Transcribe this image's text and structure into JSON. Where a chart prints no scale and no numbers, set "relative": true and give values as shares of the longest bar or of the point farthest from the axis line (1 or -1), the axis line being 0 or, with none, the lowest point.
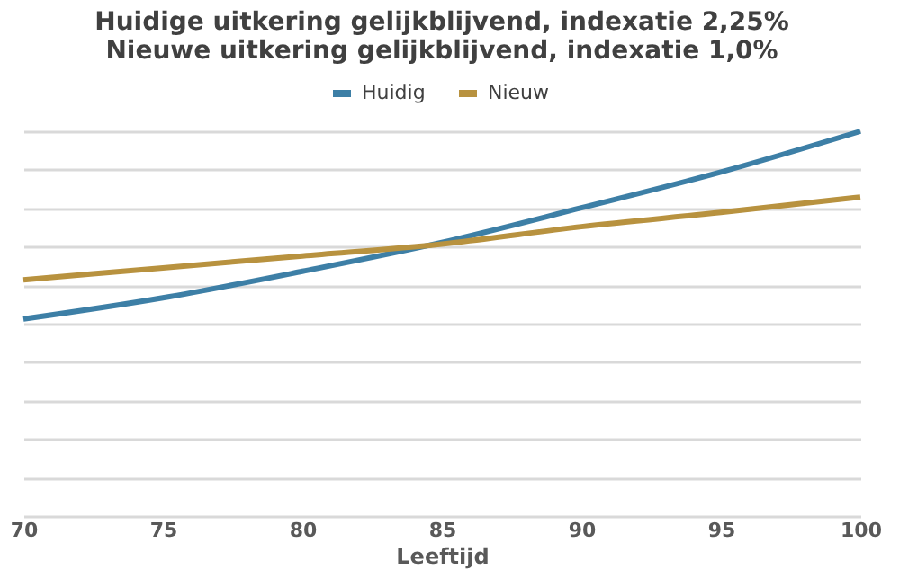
{
  "chart_data": {
    "type": "line",
    "title": "Huidige uitkering gelijkblijvend, indexatie 2,25%\nNieuwe uitkering gelijkblijvend, indexatie 1,0%",
    "xlabel": "Leeftijd",
    "x": [
      70,
      75,
      80,
      85,
      90,
      95,
      100
    ],
    "xlim": [
      70,
      100
    ],
    "xticks": [
      70,
      75,
      80,
      85,
      90,
      95,
      100
    ],
    "relative": true,
    "grid": "y",
    "legend": "top",
    "tick_labels": "x",
    "marker": "none",
    "line_style": "solid",
    "series": [
      {
        "name": "Huidig",
        "color": "#3d7fa6",
        "values": [
          0.512,
          0.567,
          0.636,
          0.711,
          0.801,
          0.894,
          1.0
        ]
      },
      {
        "name": "Nieuw",
        "color": "#b8923f",
        "values": [
          0.614,
          0.645,
          0.676,
          0.707,
          0.752,
          0.789,
          0.829
        ]
      }
    ]
  }
}
